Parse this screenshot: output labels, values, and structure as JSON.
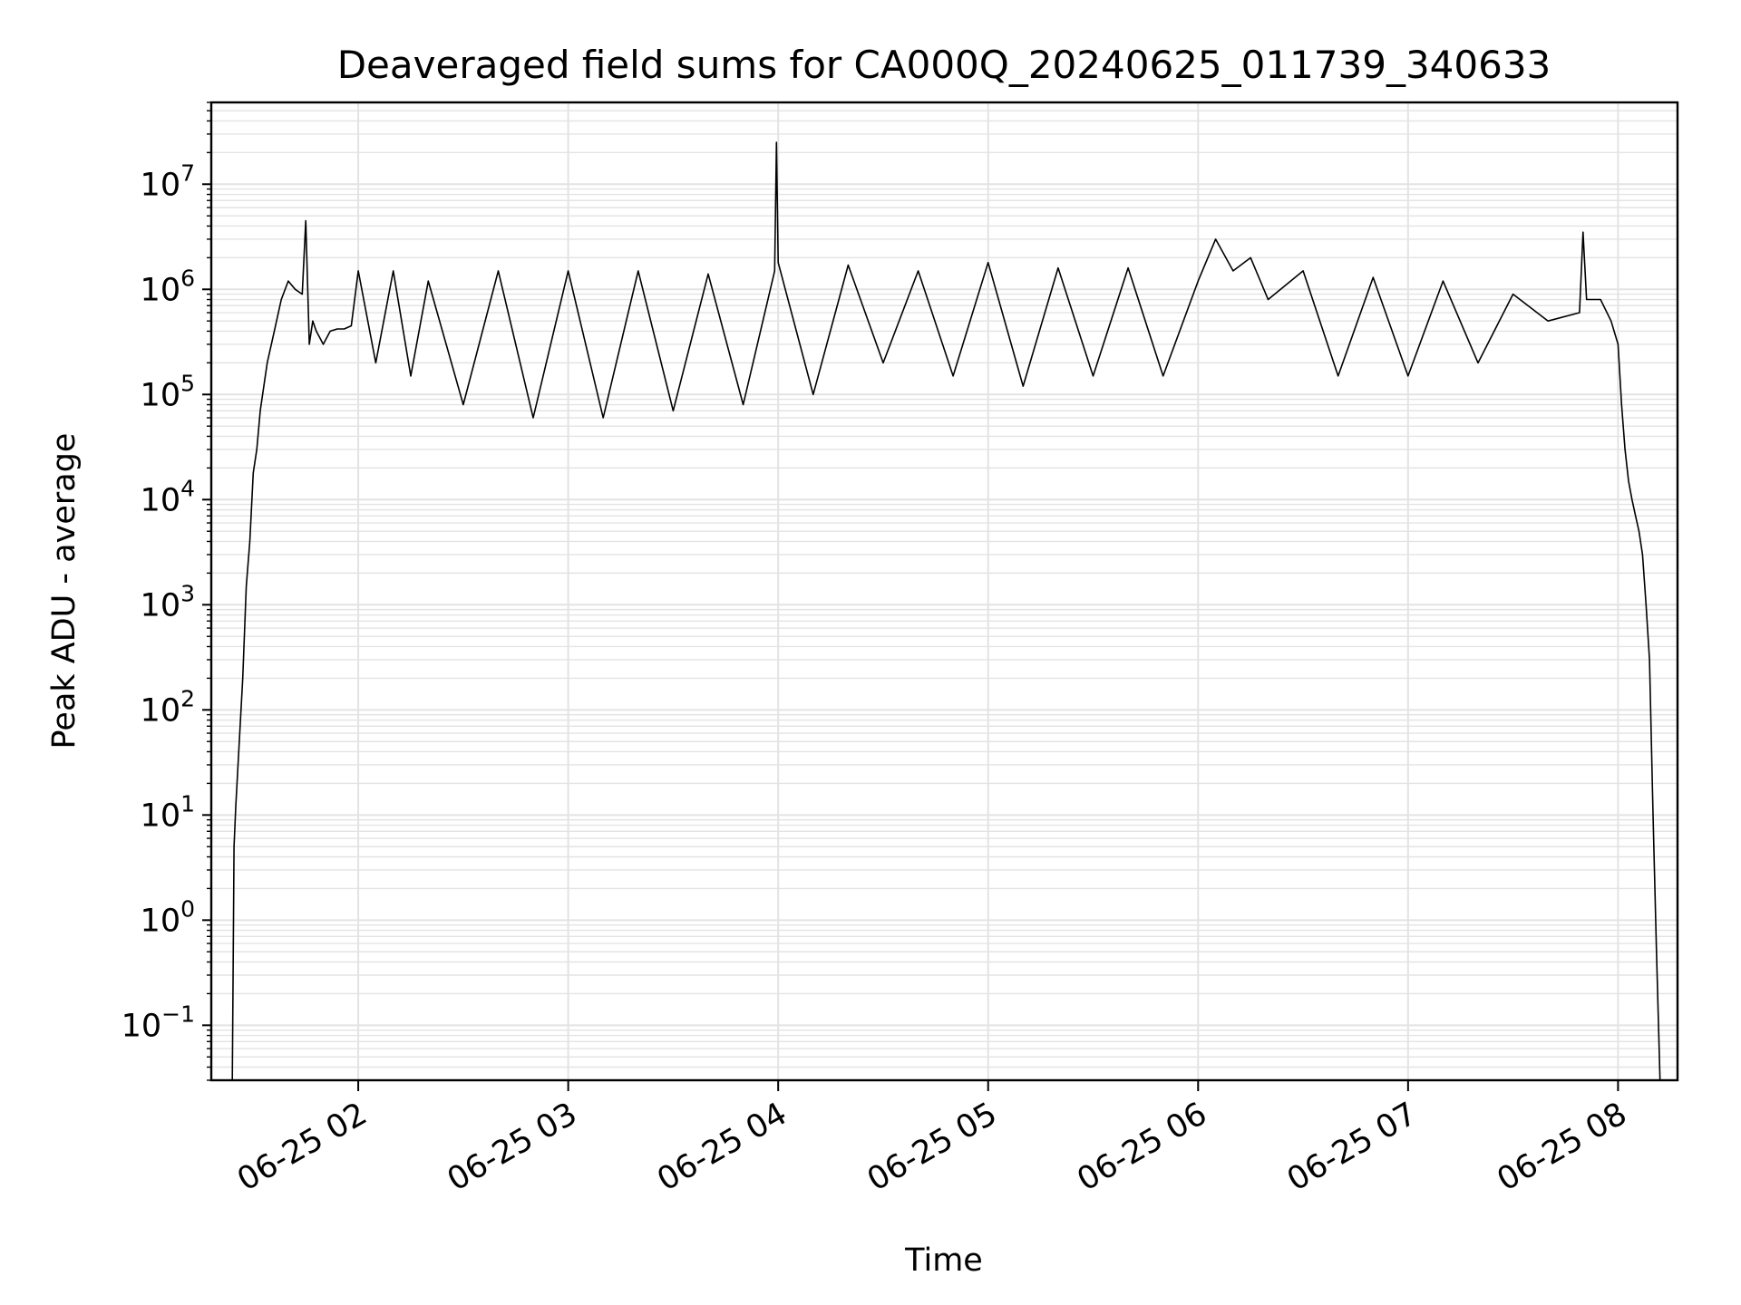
{
  "chart_data": {
    "type": "line",
    "title": "Deaveraged field sums for CA000Q_20240625_011739_340633",
    "xlabel": "Time",
    "ylabel": "Peak ADU - average",
    "yscale": "log",
    "ylim": [
      0.03,
      60000000
    ],
    "xlim": [
      "2024-06-25T01:18:00",
      "2024-06-25T08:17:00"
    ],
    "grid": true,
    "line_color": "#000000",
    "grid_color": "#e3e3e3",
    "xticks": [
      {
        "t": "2024-06-25T02:00:00",
        "label": "06-25 02"
      },
      {
        "t": "2024-06-25T03:00:00",
        "label": "06-25 03"
      },
      {
        "t": "2024-06-25T04:00:00",
        "label": "06-25 04"
      },
      {
        "t": "2024-06-25T05:00:00",
        "label": "06-25 05"
      },
      {
        "t": "2024-06-25T06:00:00",
        "label": "06-25 06"
      },
      {
        "t": "2024-06-25T07:00:00",
        "label": "06-25 07"
      },
      {
        "t": "2024-06-25T08:00:00",
        "label": "06-25 08"
      }
    ],
    "yticks": [
      {
        "v": 0.1,
        "base": "10",
        "exp": "−1"
      },
      {
        "v": 1,
        "base": "10",
        "exp": "0"
      },
      {
        "v": 10,
        "base": "10",
        "exp": "1"
      },
      {
        "v": 100,
        "base": "10",
        "exp": "2"
      },
      {
        "v": 1000,
        "base": "10",
        "exp": "3"
      },
      {
        "v": 10000,
        "base": "10",
        "exp": "4"
      },
      {
        "v": 100000,
        "base": "10",
        "exp": "5"
      },
      {
        "v": 1000000,
        "base": "10",
        "exp": "6"
      },
      {
        "v": 10000000,
        "base": "10",
        "exp": "7"
      }
    ],
    "series": [
      {
        "x": [
          "2024-06-25T01:24:00",
          "2024-06-25T01:24:30",
          "2024-06-25T01:25:00",
          "2024-06-25T01:26:00",
          "2024-06-25T01:27:00",
          "2024-06-25T01:28:00",
          "2024-06-25T01:29:00",
          "2024-06-25T01:30:00",
          "2024-06-25T01:31:00",
          "2024-06-25T01:32:00",
          "2024-06-25T01:34:00",
          "2024-06-25T01:36:00",
          "2024-06-25T01:38:00",
          "2024-06-25T01:40:00",
          "2024-06-25T01:42:00",
          "2024-06-25T01:44:00",
          "2024-06-25T01:45:00",
          "2024-06-25T01:46:00",
          "2024-06-25T01:47:00",
          "2024-06-25T01:48:00",
          "2024-06-25T01:50:00",
          "2024-06-25T01:52:00",
          "2024-06-25T01:54:00",
          "2024-06-25T01:56:00",
          "2024-06-25T01:58:00",
          "2024-06-25T02:00:00",
          "2024-06-25T02:05:00",
          "2024-06-25T02:10:00",
          "2024-06-25T02:15:00",
          "2024-06-25T02:20:00",
          "2024-06-25T02:30:00",
          "2024-06-25T02:40:00",
          "2024-06-25T02:50:00",
          "2024-06-25T03:00:00",
          "2024-06-25T03:10:00",
          "2024-06-25T03:20:00",
          "2024-06-25T03:30:00",
          "2024-06-25T03:40:00",
          "2024-06-25T03:50:00",
          "2024-06-25T03:59:00",
          "2024-06-25T03:59:30",
          "2024-06-25T04:00:00",
          "2024-06-25T04:10:00",
          "2024-06-25T04:20:00",
          "2024-06-25T04:30:00",
          "2024-06-25T04:40:00",
          "2024-06-25T04:50:00",
          "2024-06-25T05:00:00",
          "2024-06-25T05:10:00",
          "2024-06-25T05:20:00",
          "2024-06-25T05:30:00",
          "2024-06-25T05:40:00",
          "2024-06-25T05:50:00",
          "2024-06-25T06:00:00",
          "2024-06-25T06:05:00",
          "2024-06-25T06:10:00",
          "2024-06-25T06:15:00",
          "2024-06-25T06:20:00",
          "2024-06-25T06:30:00",
          "2024-06-25T06:40:00",
          "2024-06-25T06:50:00",
          "2024-06-25T07:00:00",
          "2024-06-25T07:10:00",
          "2024-06-25T07:20:00",
          "2024-06-25T07:30:00",
          "2024-06-25T07:40:00",
          "2024-06-25T07:49:00",
          "2024-06-25T07:50:00",
          "2024-06-25T07:51:00",
          "2024-06-25T07:55:00",
          "2024-06-25T07:58:00",
          "2024-06-25T08:00:00",
          "2024-06-25T08:01:00",
          "2024-06-25T08:02:00",
          "2024-06-25T08:03:00",
          "2024-06-25T08:04:00",
          "2024-06-25T08:05:00",
          "2024-06-25T08:06:00",
          "2024-06-25T08:07:00",
          "2024-06-25T08:08:00",
          "2024-06-25T08:09:00",
          "2024-06-25T08:10:00",
          "2024-06-25T08:11:00",
          "2024-06-25T08:12:00"
        ],
        "y": [
          0.03,
          5,
          12,
          50,
          200,
          1500,
          4000,
          18000,
          30000,
          70000,
          200000,
          400000,
          800000,
          1200000,
          1000000,
          900000,
          4500000,
          300000,
          500000,
          400000,
          300000,
          400000,
          420000,
          420000,
          450000,
          1500000,
          200000,
          1500000,
          150000,
          1200000,
          80000,
          1500000,
          60000,
          1500000,
          60000,
          1500000,
          70000,
          1400000,
          80000,
          1500000,
          25000000,
          1800000,
          100000,
          1700000,
          200000,
          1500000,
          150000,
          1800000,
          120000,
          1600000,
          150000,
          1600000,
          150000,
          1200000,
          3000000,
          1500000,
          2000000,
          800000,
          1500000,
          150000,
          1300000,
          150000,
          1200000,
          200000,
          900000,
          500000,
          600000,
          3500000,
          800000,
          800000,
          500000,
          300000,
          80000,
          30000,
          15000,
          10000,
          7000,
          5000,
          3000,
          1000,
          300,
          10,
          0.5,
          0.03
        ]
      }
    ]
  }
}
